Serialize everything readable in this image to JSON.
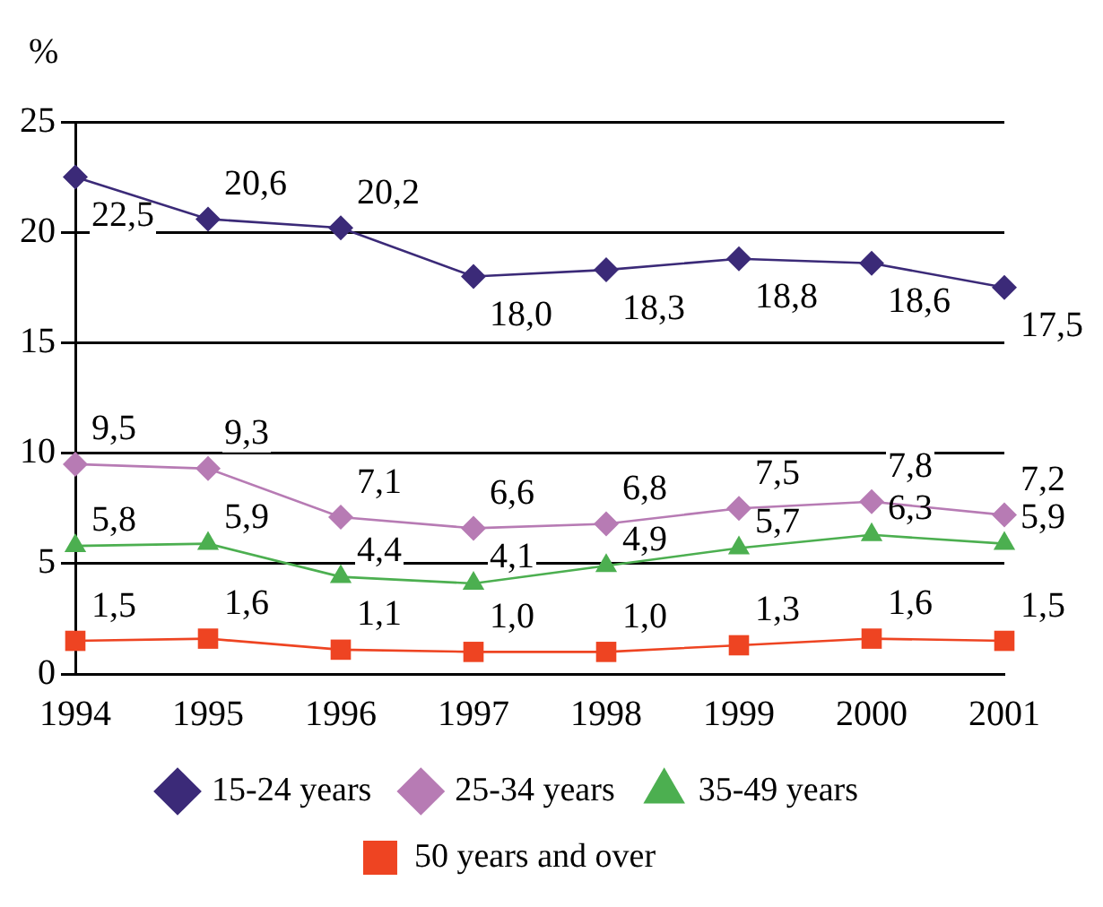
{
  "chart_data": {
    "type": "line",
    "ylabel": "%",
    "categories": [
      "1994",
      "1995",
      "1996",
      "1997",
      "1998",
      "1999",
      "2000",
      "2001"
    ],
    "ylim": [
      0,
      25
    ],
    "yticks": [
      0,
      5,
      10,
      15,
      20,
      25
    ],
    "grid": "y",
    "legend": "bottom",
    "series": [
      {
        "name": "15-24 years",
        "color": "#3b2a78",
        "marker": "diamond",
        "values": [
          22.5,
          20.6,
          20.2,
          18.0,
          18.3,
          18.8,
          18.6,
          17.5
        ],
        "value_labels": [
          "22,5",
          "20,6",
          "20,2",
          "18,0",
          "18,3",
          "18,8",
          "18,6",
          "17,5"
        ]
      },
      {
        "name": "25-34 years",
        "color": "#b77bb4",
        "marker": "diamond",
        "values": [
          9.5,
          9.3,
          7.1,
          6.6,
          6.8,
          7.5,
          7.8,
          7.2
        ],
        "value_labels": [
          "9,5",
          "9,3",
          "7,1",
          "6,6",
          "6,8",
          "7,5",
          "7,8",
          "7,2"
        ]
      },
      {
        "name": "35-49 years",
        "color": "#4caf50",
        "marker": "triangle",
        "values": [
          5.8,
          5.9,
          4.4,
          4.1,
          4.9,
          5.7,
          6.3,
          5.9
        ],
        "value_labels": [
          "5,8",
          "5,9",
          "4,4",
          "4,1",
          "4,9",
          "5,7",
          "6,3",
          "5,9"
        ]
      },
      {
        "name": "50 years and over",
        "color": "#ee4422",
        "marker": "square",
        "values": [
          1.5,
          1.6,
          1.1,
          1.0,
          1.0,
          1.3,
          1.6,
          1.5
        ],
        "value_labels": [
          "1,5",
          "1,6",
          "1,1",
          "1,0",
          "1,0",
          "1,3",
          "1,6",
          "1,5"
        ]
      }
    ]
  }
}
